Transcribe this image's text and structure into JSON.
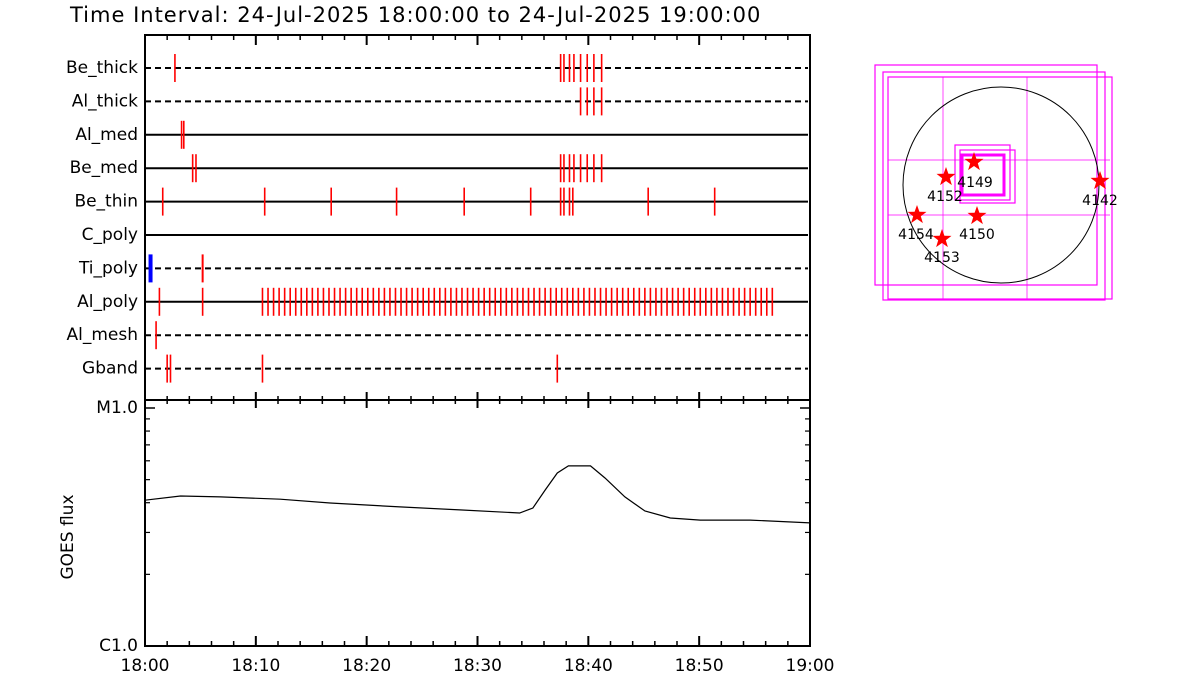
{
  "chart_data": {
    "type": "timeline",
    "title": "Time Interval: 24-Jul-2025 18:00:00 to 24-Jul-2025 19:00:00",
    "xlim": [
      0,
      60
    ],
    "xticks": [
      {
        "value": 0,
        "label": "18:00"
      },
      {
        "value": 10,
        "label": "18:10"
      },
      {
        "value": 20,
        "label": "18:20"
      },
      {
        "value": 30,
        "label": "18:30"
      },
      {
        "value": 40,
        "label": "18:40"
      },
      {
        "value": 50,
        "label": "18:50"
      },
      {
        "value": 60,
        "label": "19:00"
      }
    ],
    "xminorticks": [
      2,
      4,
      6,
      8,
      12,
      14,
      16,
      18,
      22,
      24,
      26,
      28,
      32,
      34,
      36,
      38,
      42,
      44,
      46,
      48,
      52,
      54,
      56,
      58
    ],
    "rows": [
      {
        "name": "Be_thick",
        "style": "dashed",
        "color": "#ff0000",
        "times": [
          2.7,
          37.5,
          37.8,
          38.3,
          38.7,
          39.3,
          39.9,
          40.5,
          41.2
        ]
      },
      {
        "name": "Al_thick",
        "style": "dashed",
        "color": "#ff0000",
        "times": [
          39.3,
          39.9,
          40.5,
          41.2
        ]
      },
      {
        "name": "Al_med",
        "style": "solid",
        "color": "#ff0000",
        "times": [
          3.3,
          3.5
        ]
      },
      {
        "name": "Be_med",
        "style": "solid",
        "color": "#ff0000",
        "times": [
          4.3,
          4.6,
          37.5,
          37.8,
          38.3,
          38.7,
          39.3,
          39.9,
          40.5,
          41.2
        ]
      },
      {
        "name": "Be_thin",
        "style": "solid",
        "color": "#ff0000",
        "times": [
          1.6,
          10.8,
          16.8,
          22.7,
          28.8,
          34.8,
          37.5,
          37.8,
          38.3,
          38.6,
          45.4,
          51.4
        ]
      },
      {
        "name": "C_poly",
        "style": "solid",
        "color": "#ff0000",
        "times": []
      },
      {
        "name": "Ti_poly",
        "style": "dashed",
        "color": "#ff0000",
        "colors": [
          "#0000ff",
          "#ff0000"
        ],
        "times": [
          0.5,
          5.2
        ]
      },
      {
        "name": "Al_poly",
        "style": "solid",
        "color": "#ff0000",
        "times": [
          1.3,
          5.2,
          10.6,
          11.1,
          11.6,
          12.1,
          12.6,
          13.1,
          13.6,
          14.1,
          14.6,
          15.1,
          15.6,
          16.1,
          16.6,
          17.1,
          17.6,
          18.1,
          18.6,
          19.1,
          19.6,
          20.1,
          20.6,
          21.1,
          21.6,
          22.1,
          22.6,
          23.1,
          23.6,
          24.1,
          24.6,
          25.1,
          25.6,
          26.1,
          26.6,
          27.1,
          27.6,
          28.1,
          28.6,
          29.1,
          29.6,
          30.1,
          30.6,
          31.1,
          31.6,
          32.1,
          32.6,
          33.1,
          33.6,
          34.1,
          34.6,
          35.1,
          35.6,
          36.1,
          36.6,
          37.1,
          37.6,
          38.1,
          38.6,
          39.1,
          39.6,
          40.1,
          40.6,
          41.1,
          41.6,
          42.1,
          42.6,
          43.1,
          43.6,
          44.1,
          44.6,
          45.1,
          45.6,
          46.1,
          46.6,
          47.1,
          47.6,
          48.1,
          48.6,
          49.1,
          49.6,
          50.1,
          50.6,
          51.1,
          51.6,
          52.1,
          52.6,
          53.1,
          53.6,
          54.1,
          54.6,
          55.1,
          55.6,
          56.1,
          56.6
        ]
      },
      {
        "name": "Al_mesh",
        "style": "dashed",
        "color": "#ff0000",
        "times": [
          1.0
        ]
      },
      {
        "name": "Gband",
        "style": "dashed",
        "color": "#ff0000",
        "times": [
          2.0,
          2.3,
          10.6,
          37.2
        ]
      }
    ],
    "goes": {
      "ylabel": "GOES flux",
      "log": true,
      "color": "#000000",
      "ylim": [
        1e-06,
        1e-05
      ],
      "yticks": [
        {
          "value": 1e-06,
          "label": "C1.0"
        },
        {
          "value": 1e-05,
          "label": "M1.0"
        }
      ],
      "yminorticks": [
        2e-06,
        3e-06,
        4e-06,
        5e-06,
        6e-06,
        7e-06,
        8e-06,
        9e-06
      ],
      "x": [
        0,
        3.2,
        6.8,
        12.2,
        16.7,
        23.0,
        28.4,
        33.8,
        35.0,
        36.1,
        37.2,
        38.2,
        40.2,
        41.5,
        43.3,
        45.1,
        47.4,
        50.1,
        54.6,
        60
      ],
      "values": [
        4.1e-06,
        4.27e-06,
        4.23e-06,
        4.14e-06,
        3.99e-06,
        3.84e-06,
        3.73e-06,
        3.62e-06,
        3.8e-06,
        4.52e-06,
        5.33e-06,
        5.71e-06,
        5.71e-06,
        5.08e-06,
        4.23e-06,
        3.69e-06,
        3.45e-06,
        3.38e-06,
        3.38e-06,
        3.29e-06
      ]
    },
    "map": {
      "regions": [
        "4149",
        "4152",
        "4142",
        "4154",
        "4150",
        "4153"
      ],
      "star_color": "#ff0000"
    }
  }
}
